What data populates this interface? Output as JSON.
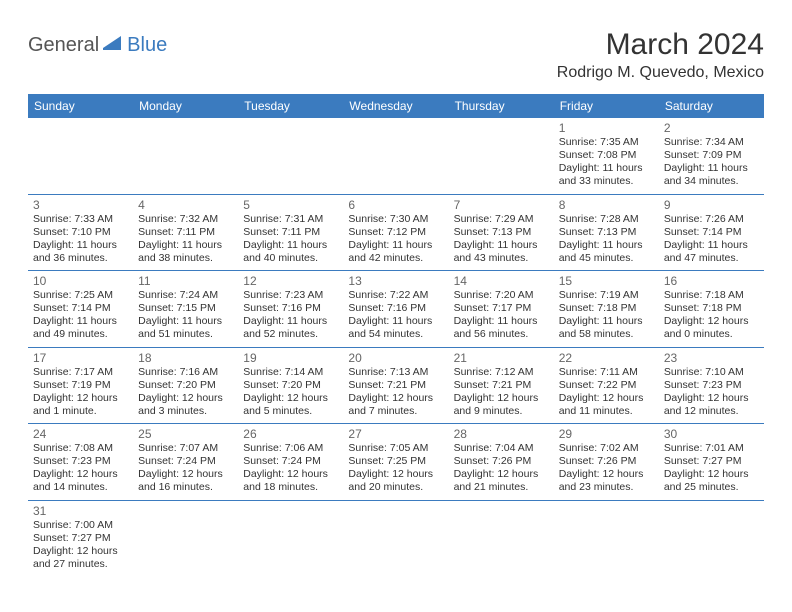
{
  "logo": {
    "general": "General",
    "blue": "Blue"
  },
  "title": "March 2024",
  "location": "Rodrigo M. Quevedo, Mexico",
  "colors": {
    "header_bg": "#3b7bbf",
    "header_fg": "#ffffff",
    "border": "#3b7bbf"
  },
  "weekdays": [
    "Sunday",
    "Monday",
    "Tuesday",
    "Wednesday",
    "Thursday",
    "Friday",
    "Saturday"
  ],
  "weeks": [
    [
      null,
      null,
      null,
      null,
      null,
      {
        "n": "1",
        "sr": "Sunrise: 7:35 AM",
        "ss": "Sunset: 7:08 PM",
        "d1": "Daylight: 11 hours",
        "d2": "and 33 minutes."
      },
      {
        "n": "2",
        "sr": "Sunrise: 7:34 AM",
        "ss": "Sunset: 7:09 PM",
        "d1": "Daylight: 11 hours",
        "d2": "and 34 minutes."
      }
    ],
    [
      {
        "n": "3",
        "sr": "Sunrise: 7:33 AM",
        "ss": "Sunset: 7:10 PM",
        "d1": "Daylight: 11 hours",
        "d2": "and 36 minutes."
      },
      {
        "n": "4",
        "sr": "Sunrise: 7:32 AM",
        "ss": "Sunset: 7:11 PM",
        "d1": "Daylight: 11 hours",
        "d2": "and 38 minutes."
      },
      {
        "n": "5",
        "sr": "Sunrise: 7:31 AM",
        "ss": "Sunset: 7:11 PM",
        "d1": "Daylight: 11 hours",
        "d2": "and 40 minutes."
      },
      {
        "n": "6",
        "sr": "Sunrise: 7:30 AM",
        "ss": "Sunset: 7:12 PM",
        "d1": "Daylight: 11 hours",
        "d2": "and 42 minutes."
      },
      {
        "n": "7",
        "sr": "Sunrise: 7:29 AM",
        "ss": "Sunset: 7:13 PM",
        "d1": "Daylight: 11 hours",
        "d2": "and 43 minutes."
      },
      {
        "n": "8",
        "sr": "Sunrise: 7:28 AM",
        "ss": "Sunset: 7:13 PM",
        "d1": "Daylight: 11 hours",
        "d2": "and 45 minutes."
      },
      {
        "n": "9",
        "sr": "Sunrise: 7:26 AM",
        "ss": "Sunset: 7:14 PM",
        "d1": "Daylight: 11 hours",
        "d2": "and 47 minutes."
      }
    ],
    [
      {
        "n": "10",
        "sr": "Sunrise: 7:25 AM",
        "ss": "Sunset: 7:14 PM",
        "d1": "Daylight: 11 hours",
        "d2": "and 49 minutes."
      },
      {
        "n": "11",
        "sr": "Sunrise: 7:24 AM",
        "ss": "Sunset: 7:15 PM",
        "d1": "Daylight: 11 hours",
        "d2": "and 51 minutes."
      },
      {
        "n": "12",
        "sr": "Sunrise: 7:23 AM",
        "ss": "Sunset: 7:16 PM",
        "d1": "Daylight: 11 hours",
        "d2": "and 52 minutes."
      },
      {
        "n": "13",
        "sr": "Sunrise: 7:22 AM",
        "ss": "Sunset: 7:16 PM",
        "d1": "Daylight: 11 hours",
        "d2": "and 54 minutes."
      },
      {
        "n": "14",
        "sr": "Sunrise: 7:20 AM",
        "ss": "Sunset: 7:17 PM",
        "d1": "Daylight: 11 hours",
        "d2": "and 56 minutes."
      },
      {
        "n": "15",
        "sr": "Sunrise: 7:19 AM",
        "ss": "Sunset: 7:18 PM",
        "d1": "Daylight: 11 hours",
        "d2": "and 58 minutes."
      },
      {
        "n": "16",
        "sr": "Sunrise: 7:18 AM",
        "ss": "Sunset: 7:18 PM",
        "d1": "Daylight: 12 hours",
        "d2": "and 0 minutes."
      }
    ],
    [
      {
        "n": "17",
        "sr": "Sunrise: 7:17 AM",
        "ss": "Sunset: 7:19 PM",
        "d1": "Daylight: 12 hours",
        "d2": "and 1 minute."
      },
      {
        "n": "18",
        "sr": "Sunrise: 7:16 AM",
        "ss": "Sunset: 7:20 PM",
        "d1": "Daylight: 12 hours",
        "d2": "and 3 minutes."
      },
      {
        "n": "19",
        "sr": "Sunrise: 7:14 AM",
        "ss": "Sunset: 7:20 PM",
        "d1": "Daylight: 12 hours",
        "d2": "and 5 minutes."
      },
      {
        "n": "20",
        "sr": "Sunrise: 7:13 AM",
        "ss": "Sunset: 7:21 PM",
        "d1": "Daylight: 12 hours",
        "d2": "and 7 minutes."
      },
      {
        "n": "21",
        "sr": "Sunrise: 7:12 AM",
        "ss": "Sunset: 7:21 PM",
        "d1": "Daylight: 12 hours",
        "d2": "and 9 minutes."
      },
      {
        "n": "22",
        "sr": "Sunrise: 7:11 AM",
        "ss": "Sunset: 7:22 PM",
        "d1": "Daylight: 12 hours",
        "d2": "and 11 minutes."
      },
      {
        "n": "23",
        "sr": "Sunrise: 7:10 AM",
        "ss": "Sunset: 7:23 PM",
        "d1": "Daylight: 12 hours",
        "d2": "and 12 minutes."
      }
    ],
    [
      {
        "n": "24",
        "sr": "Sunrise: 7:08 AM",
        "ss": "Sunset: 7:23 PM",
        "d1": "Daylight: 12 hours",
        "d2": "and 14 minutes."
      },
      {
        "n": "25",
        "sr": "Sunrise: 7:07 AM",
        "ss": "Sunset: 7:24 PM",
        "d1": "Daylight: 12 hours",
        "d2": "and 16 minutes."
      },
      {
        "n": "26",
        "sr": "Sunrise: 7:06 AM",
        "ss": "Sunset: 7:24 PM",
        "d1": "Daylight: 12 hours",
        "d2": "and 18 minutes."
      },
      {
        "n": "27",
        "sr": "Sunrise: 7:05 AM",
        "ss": "Sunset: 7:25 PM",
        "d1": "Daylight: 12 hours",
        "d2": "and 20 minutes."
      },
      {
        "n": "28",
        "sr": "Sunrise: 7:04 AM",
        "ss": "Sunset: 7:26 PM",
        "d1": "Daylight: 12 hours",
        "d2": "and 21 minutes."
      },
      {
        "n": "29",
        "sr": "Sunrise: 7:02 AM",
        "ss": "Sunset: 7:26 PM",
        "d1": "Daylight: 12 hours",
        "d2": "and 23 minutes."
      },
      {
        "n": "30",
        "sr": "Sunrise: 7:01 AM",
        "ss": "Sunset: 7:27 PM",
        "d1": "Daylight: 12 hours",
        "d2": "and 25 minutes."
      }
    ],
    [
      {
        "n": "31",
        "sr": "Sunrise: 7:00 AM",
        "ss": "Sunset: 7:27 PM",
        "d1": "Daylight: 12 hours",
        "d2": "and 27 minutes."
      },
      null,
      null,
      null,
      null,
      null,
      null
    ]
  ]
}
